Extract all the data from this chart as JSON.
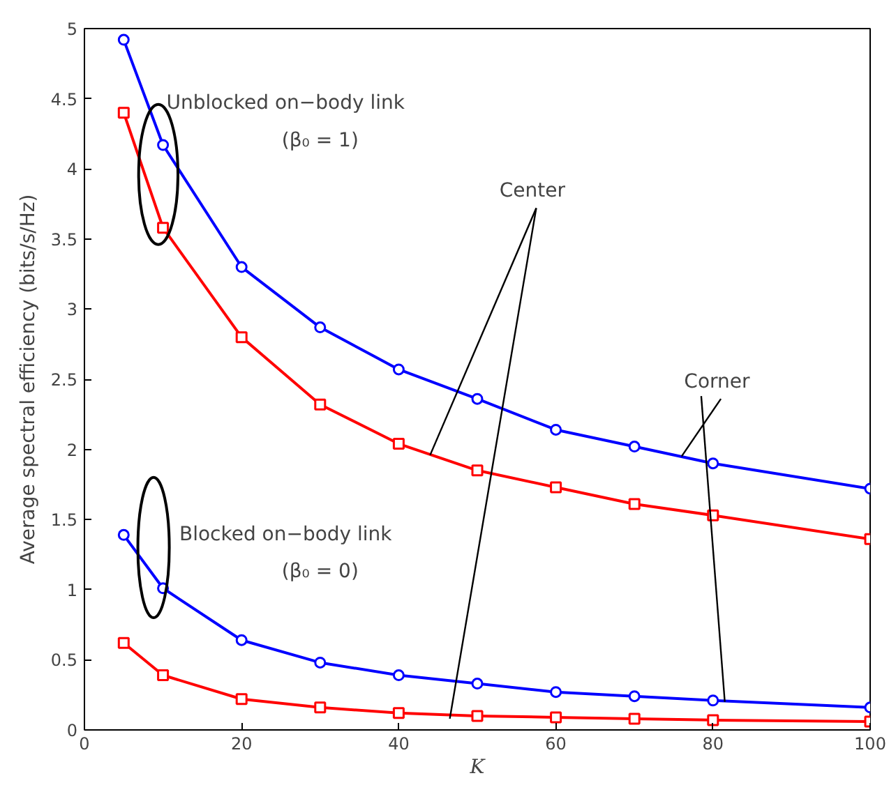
{
  "chart_data": {
    "type": "line",
    "xlabel": "K",
    "ylabel": "Average spectral efficiency (bits/s/Hz)",
    "x": [
      5,
      10,
      20,
      30,
      40,
      50,
      60,
      70,
      80,
      100
    ],
    "xlim": [
      0,
      100
    ],
    "xticks": [
      0,
      20,
      40,
      60,
      80,
      100
    ],
    "ylim": [
      0,
      5
    ],
    "yticks": [
      0,
      0.5,
      1,
      1.5,
      2,
      2.5,
      3,
      3.5,
      4,
      4.5,
      5
    ],
    "grid": false,
    "line_style": "solid",
    "series": [
      {
        "color": "#0000ff",
        "marker": "circle",
        "values": [
          4.92,
          4.17,
          3.3,
          2.87,
          2.57,
          2.36,
          2.14,
          2.02,
          1.9,
          1.72
        ]
      },
      {
        "color": "#ff0000",
        "marker": "square",
        "values": [
          4.4,
          3.58,
          2.8,
          2.32,
          2.04,
          1.85,
          1.73,
          1.61,
          1.53,
          1.36
        ]
      },
      {
        "color": "#0000ff",
        "marker": "circle",
        "values": [
          1.39,
          1.01,
          0.64,
          0.48,
          0.39,
          0.33,
          0.27,
          0.24,
          0.21,
          0.16
        ]
      },
      {
        "color": "#ff0000",
        "marker": "square",
        "values": [
          0.62,
          0.39,
          0.22,
          0.16,
          0.12,
          0.1,
          0.09,
          0.08,
          0.07,
          0.06
        ]
      }
    ],
    "annotations": [
      "Unblocked on−body link",
      "(β₀ = 1)",
      "Blocked on−body link",
      "(β₀ = 0)",
      {
        "text": "Center",
        "x": 44,
        "y": 1.96
      },
      {
        "text": "Corner",
        "x": 76,
        "y": 1.95
      }
    ]
  }
}
